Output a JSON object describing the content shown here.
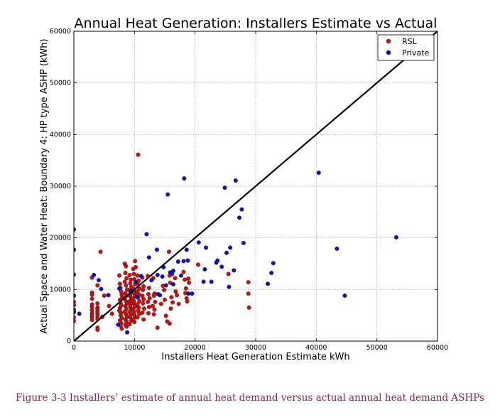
{
  "caption": "Figure 3-3 Installers’ estimate of annual heat demand versus actual annual heat demand ASHPs",
  "chart_data": {
    "type": "scatter",
    "title": "Annual Heat Generation: Installers Estimate vs Actual",
    "xlabel": "Installers Heat Generation Estimate kWh",
    "ylabel": "Actual Space and Water Heat: Boundary 4: HP type ASHP (kWh)",
    "xlim": [
      0,
      60000
    ],
    "ylim": [
      0,
      60000
    ],
    "xticks": [
      "0",
      "10000",
      "20000",
      "30000",
      "40000",
      "50000",
      "60000"
    ],
    "yticks": [
      "0",
      "10000",
      "20000",
      "30000",
      "40000",
      "50000",
      "60000"
    ],
    "grid": true,
    "legend": "top-right",
    "reference_line": {
      "x": [
        0,
        60000
      ],
      "y": [
        0,
        60000
      ],
      "color": "#000000"
    },
    "series": [
      {
        "name": "RSL",
        "color": "#cc1111",
        "points": [
          [
            0,
            7600
          ],
          [
            0,
            7000
          ],
          [
            0,
            6100
          ],
          [
            0,
            5600
          ],
          [
            0,
            4600
          ],
          [
            0,
            3900
          ],
          [
            3000,
            12300
          ],
          [
            3000,
            9400
          ],
          [
            3000,
            9000
          ],
          [
            3000,
            8200
          ],
          [
            3000,
            7100
          ],
          [
            3000,
            6600
          ],
          [
            3000,
            6000
          ],
          [
            3000,
            5400
          ],
          [
            3000,
            5000
          ],
          [
            3000,
            4600
          ],
          [
            3000,
            4100
          ],
          [
            3900,
            10800
          ],
          [
            3900,
            7300
          ],
          [
            3900,
            6500
          ],
          [
            3900,
            6200
          ],
          [
            3900,
            5700
          ],
          [
            3900,
            5300
          ],
          [
            3900,
            4800
          ],
          [
            3900,
            4300
          ],
          [
            3900,
            2600
          ],
          [
            3900,
            2200
          ],
          [
            4400,
            17300
          ],
          [
            4700,
            4700
          ],
          [
            5000,
            8800
          ],
          [
            5800,
            6800
          ],
          [
            6300,
            5300
          ],
          [
            7500,
            12700
          ],
          [
            7600,
            11100
          ],
          [
            7700,
            10300
          ],
          [
            7800,
            9600
          ],
          [
            7900,
            9000
          ],
          [
            8000,
            8500
          ],
          [
            7600,
            8000
          ],
          [
            7700,
            7400
          ],
          [
            7800,
            6900
          ],
          [
            7600,
            6400
          ],
          [
            7500,
            5900
          ],
          [
            7800,
            5500
          ],
          [
            7700,
            5000
          ],
          [
            7900,
            4500
          ],
          [
            7600,
            4000
          ],
          [
            7800,
            3500
          ],
          [
            7700,
            3000
          ],
          [
            7900,
            2400
          ],
          [
            8400,
            15000
          ],
          [
            8600,
            14500
          ],
          [
            8500,
            13200
          ],
          [
            8700,
            12200
          ],
          [
            8400,
            11500
          ],
          [
            8600,
            10800
          ],
          [
            8800,
            10000
          ],
          [
            8500,
            9300
          ],
          [
            8700,
            8800
          ],
          [
            8400,
            8200
          ],
          [
            8600,
            7700
          ],
          [
            8800,
            7300
          ],
          [
            8500,
            6800
          ],
          [
            8700,
            6200
          ],
          [
            8400,
            5700
          ],
          [
            8600,
            5200
          ],
          [
            8800,
            4700
          ],
          [
            8500,
            4200
          ],
          [
            8700,
            3800
          ],
          [
            8500,
            3200
          ],
          [
            8700,
            2800
          ],
          [
            9200,
            12800
          ],
          [
            9400,
            11900
          ],
          [
            9300,
            11200
          ],
          [
            9500,
            10500
          ],
          [
            9200,
            9800
          ],
          [
            9400,
            9300
          ],
          [
            9300,
            8700
          ],
          [
            9500,
            8200
          ],
          [
            9200,
            7700
          ],
          [
            9400,
            7200
          ],
          [
            9300,
            6700
          ],
          [
            9500,
            6200
          ],
          [
            9200,
            5600
          ],
          [
            9400,
            5100
          ],
          [
            9300,
            4600
          ],
          [
            9500,
            4000
          ],
          [
            9200,
            3300
          ],
          [
            9800,
            14000
          ],
          [
            9900,
            13000
          ],
          [
            10000,
            12000
          ],
          [
            10100,
            11000
          ],
          [
            9800,
            10200
          ],
          [
            9900,
            9700
          ],
          [
            10000,
            9200
          ],
          [
            10100,
            8700
          ],
          [
            9800,
            8200
          ],
          [
            9900,
            7700
          ],
          [
            10000,
            7200
          ],
          [
            10100,
            6700
          ],
          [
            9800,
            6200
          ],
          [
            9900,
            5700
          ],
          [
            10000,
            5200
          ],
          [
            10100,
            4700
          ],
          [
            9800,
            4200
          ],
          [
            10000,
            3700
          ],
          [
            10100,
            15500
          ],
          [
            10200,
            14300
          ],
          [
            10600,
            36100
          ],
          [
            10500,
            12700
          ],
          [
            10700,
            11700
          ],
          [
            10600,
            10900
          ],
          [
            10800,
            10200
          ],
          [
            10500,
            9600
          ],
          [
            10700,
            9000
          ],
          [
            10600,
            8400
          ],
          [
            10800,
            7700
          ],
          [
            10500,
            7100
          ],
          [
            10700,
            6500
          ],
          [
            10600,
            5900
          ],
          [
            10800,
            5300
          ],
          [
            10500,
            4600
          ],
          [
            11300,
            12300
          ],
          [
            11500,
            10600
          ],
          [
            11400,
            9900
          ],
          [
            11300,
            8800
          ],
          [
            11500,
            8100
          ],
          [
            11400,
            7300
          ],
          [
            11600,
            6300
          ],
          [
            11300,
            5500
          ],
          [
            11500,
            4200
          ],
          [
            12200,
            12600
          ],
          [
            12400,
            10300
          ],
          [
            12300,
            9100
          ],
          [
            12500,
            8300
          ],
          [
            12200,
            7600
          ],
          [
            12400,
            6600
          ],
          [
            12300,
            5400
          ],
          [
            13100,
            12200
          ],
          [
            13300,
            9200
          ],
          [
            13200,
            8800
          ],
          [
            13400,
            7600
          ],
          [
            13000,
            6800
          ],
          [
            13300,
            6100
          ],
          [
            13200,
            5200
          ],
          [
            13800,
            2600
          ],
          [
            14400,
            7200
          ],
          [
            14700,
            10700
          ],
          [
            14900,
            9900
          ],
          [
            15000,
            8000
          ],
          [
            15200,
            4900
          ],
          [
            15400,
            3800
          ],
          [
            15700,
            17300
          ],
          [
            15800,
            12700
          ],
          [
            15900,
            11300
          ],
          [
            16100,
            8500
          ],
          [
            16300,
            7500
          ],
          [
            16000,
            6300
          ],
          [
            15800,
            3400
          ],
          [
            16700,
            12200
          ],
          [
            16800,
            9600
          ],
          [
            17000,
            8900
          ],
          [
            17300,
            7200
          ],
          [
            18100,
            13400
          ],
          [
            18300,
            11900
          ],
          [
            18500,
            10200
          ],
          [
            18400,
            9300
          ],
          [
            18600,
            8300
          ],
          [
            18700,
            7700
          ],
          [
            18900,
            12100
          ],
          [
            19000,
            11300
          ],
          [
            20500,
            14800
          ],
          [
            25500,
            13000
          ],
          [
            28800,
            11400
          ],
          [
            28800,
            9200
          ],
          [
            28900,
            6500
          ]
        ]
      },
      {
        "name": "Private",
        "color": "#1111bb",
        "points": [
          [
            0,
            21600
          ],
          [
            0,
            17700
          ],
          [
            0,
            12900
          ],
          [
            0,
            8800
          ],
          [
            0,
            5700
          ],
          [
            900,
            5300
          ],
          [
            3300,
            12800
          ],
          [
            4100,
            11800
          ],
          [
            4500,
            10100
          ],
          [
            5700,
            8900
          ],
          [
            7300,
            3200
          ],
          [
            7500,
            10200
          ],
          [
            8800,
            1700
          ],
          [
            9400,
            9700
          ],
          [
            10200,
            11400
          ],
          [
            10400,
            8600
          ],
          [
            11100,
            12600
          ],
          [
            12000,
            20700
          ],
          [
            12400,
            16200
          ],
          [
            12800,
            11800
          ],
          [
            13700,
            17700
          ],
          [
            13800,
            12800
          ],
          [
            13900,
            9100
          ],
          [
            14200,
            8900
          ],
          [
            14600,
            12500
          ],
          [
            14800,
            14300
          ],
          [
            15200,
            10800
          ],
          [
            15500,
            28400
          ],
          [
            15900,
            13300
          ],
          [
            16200,
            13000
          ],
          [
            16400,
            13600
          ],
          [
            16400,
            11000
          ],
          [
            17200,
            15400
          ],
          [
            17700,
            12700
          ],
          [
            18100,
            15500
          ],
          [
            18200,
            31500
          ],
          [
            18600,
            17700
          ],
          [
            18800,
            15600
          ],
          [
            18900,
            9200
          ],
          [
            19500,
            9200
          ],
          [
            20600,
            19100
          ],
          [
            21400,
            11500
          ],
          [
            21600,
            13900
          ],
          [
            21800,
            18100
          ],
          [
            22700,
            11500
          ],
          [
            23700,
            15600
          ],
          [
            23500,
            15200
          ],
          [
            24400,
            14400
          ],
          [
            24900,
            29700
          ],
          [
            25200,
            17100
          ],
          [
            25600,
            10500
          ],
          [
            25800,
            18100
          ],
          [
            26400,
            13700
          ],
          [
            26700,
            31100
          ],
          [
            27300,
            23900
          ],
          [
            27700,
            25500
          ],
          [
            28000,
            19000
          ],
          [
            32000,
            11100
          ],
          [
            32600,
            13200
          ],
          [
            32900,
            15100
          ],
          [
            40400,
            32600
          ],
          [
            43400,
            17900
          ],
          [
            44700,
            8800
          ],
          [
            53200,
            20100
          ]
        ]
      }
    ]
  }
}
